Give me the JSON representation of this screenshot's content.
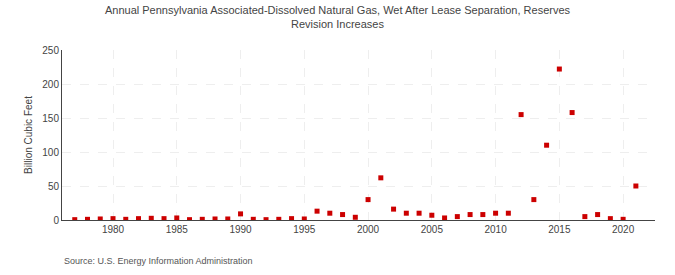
{
  "chart_data": {
    "type": "scatter",
    "title": "Annual Pennsylvania Associated-Dissolved Natural Gas, Wet After Lease Separation, Reserves\nRevision Increases",
    "ylabel": "Billion Cubic Feet",
    "source": "Source: U.S. Energy Information Administration",
    "x": [
      1977,
      1978,
      1979,
      1980,
      1981,
      1982,
      1983,
      1984,
      1985,
      1986,
      1987,
      1988,
      1989,
      1990,
      1991,
      1992,
      1993,
      1994,
      1995,
      1996,
      1997,
      1998,
      1999,
      2000,
      2001,
      2002,
      2003,
      2004,
      2005,
      2006,
      2007,
      2008,
      2009,
      2010,
      2011,
      2012,
      2013,
      2014,
      2015,
      2016,
      2017,
      2018,
      2019,
      2020,
      2021
    ],
    "values": [
      0.5,
      1.0,
      1.5,
      2.0,
      1.0,
      2.0,
      2.5,
      2.0,
      3.0,
      0.5,
      1.0,
      1.5,
      1.5,
      9.0,
      1.0,
      0.5,
      1.0,
      2.0,
      1.5,
      13.0,
      10.0,
      8.0,
      4.0,
      30.0,
      62.0,
      16.0,
      10.0,
      10.0,
      7.0,
      3.0,
      5.0,
      8.0,
      8.0,
      10.0,
      10.0,
      155.0,
      30.0,
      110.0,
      222.0,
      158.0,
      5.0,
      8.0,
      2.0,
      1.0,
      50.0
    ],
    "color": "#cc0000",
    "marker": "square",
    "xlim": [
      1976,
      2022.5
    ],
    "ylim": [
      0,
      250
    ],
    "xticks": [
      1980,
      1985,
      1990,
      1995,
      2000,
      2005,
      2010,
      2015,
      2020
    ],
    "yticks": [
      0,
      50,
      100,
      150,
      200,
      250
    ],
    "grid": true
  }
}
